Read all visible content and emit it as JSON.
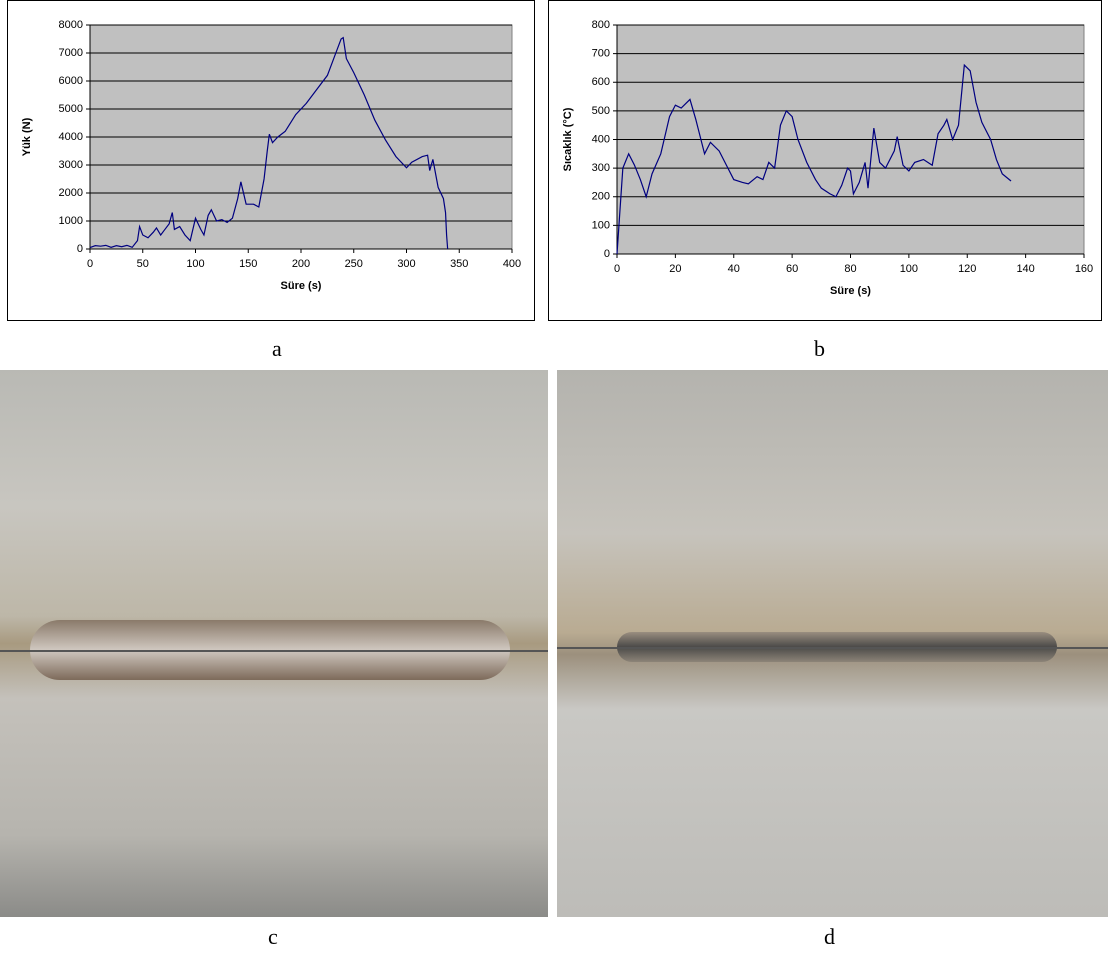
{
  "chart_data": [
    {
      "type": "line",
      "xlabel": "Süre (s)",
      "ylabel": "Yük (N)",
      "color": "#000080",
      "grid": true,
      "xlim": [
        0,
        400
      ],
      "xticks": [
        0,
        50,
        100,
        150,
        200,
        250,
        300,
        350,
        400
      ],
      "ylim": [
        0,
        8000
      ],
      "yticks": [
        0,
        1000,
        2000,
        3000,
        4000,
        5000,
        6000,
        7000,
        8000
      ],
      "x": [
        0,
        5,
        10,
        15,
        20,
        25,
        30,
        35,
        40,
        45,
        47,
        50,
        55,
        60,
        63,
        67,
        70,
        75,
        78,
        80,
        85,
        90,
        95,
        100,
        105,
        108,
        112,
        115,
        120,
        125,
        130,
        135,
        140,
        143,
        148,
        155,
        160,
        165,
        168,
        170,
        173,
        178,
        185,
        195,
        205,
        215,
        225,
        232,
        238,
        240,
        243,
        250,
        260,
        270,
        280,
        290,
        300,
        305,
        315,
        320,
        322,
        325,
        330,
        335,
        337,
        338,
        339
      ],
      "values": [
        50,
        120,
        100,
        130,
        60,
        120,
        80,
        130,
        60,
        300,
        800,
        500,
        400,
        600,
        750,
        500,
        650,
        900,
        1300,
        700,
        800,
        500,
        300,
        1100,
        700,
        500,
        1200,
        1400,
        1000,
        1050,
        950,
        1100,
        1800,
        2400,
        1600,
        1600,
        1500,
        2500,
        3500,
        4100,
        3800,
        4000,
        4200,
        4800,
        5200,
        5700,
        6200,
        6900,
        7500,
        7550,
        6800,
        6300,
        5500,
        4600,
        3900,
        3300,
        2900,
        3100,
        3300,
        3350,
        2800,
        3200,
        2200,
        1800,
        1300,
        500,
        0
      ]
    },
    {
      "type": "line",
      "xlabel": "Süre (s)",
      "ylabel": "Sıcaklık (°C)",
      "color": "#000080",
      "grid": true,
      "xlim": [
        0,
        160
      ],
      "xticks": [
        0,
        20,
        40,
        60,
        80,
        100,
        120,
        140,
        160
      ],
      "ylim": [
        0,
        800
      ],
      "yticks": [
        0,
        100,
        200,
        300,
        400,
        500,
        600,
        700,
        800
      ],
      "x": [
        0,
        1,
        2,
        4,
        6,
        8,
        10,
        12,
        15,
        18,
        20,
        22,
        25,
        27,
        30,
        32,
        35,
        38,
        40,
        43,
        45,
        48,
        50,
        52,
        54,
        56,
        58,
        60,
        62,
        65,
        68,
        70,
        73,
        75,
        77,
        79,
        80,
        81,
        83,
        85,
        86,
        88,
        90,
        92,
        95,
        96,
        98,
        100,
        102,
        105,
        108,
        110,
        112,
        113,
        115,
        117,
        119,
        121,
        123,
        125,
        128,
        130,
        132,
        135
      ],
      "values": [
        0,
        150,
        300,
        350,
        310,
        260,
        200,
        280,
        350,
        480,
        520,
        510,
        540,
        470,
        350,
        390,
        360,
        300,
        260,
        250,
        245,
        270,
        260,
        320,
        300,
        450,
        500,
        480,
        400,
        320,
        260,
        230,
        210,
        200,
        240,
        300,
        290,
        210,
        250,
        320,
        230,
        440,
        320,
        300,
        360,
        410,
        310,
        290,
        320,
        330,
        310,
        420,
        450,
        470,
        400,
        450,
        660,
        640,
        530,
        460,
        400,
        330,
        280,
        255
      ]
    }
  ],
  "captions": [
    "a",
    "b",
    "c",
    "d"
  ]
}
